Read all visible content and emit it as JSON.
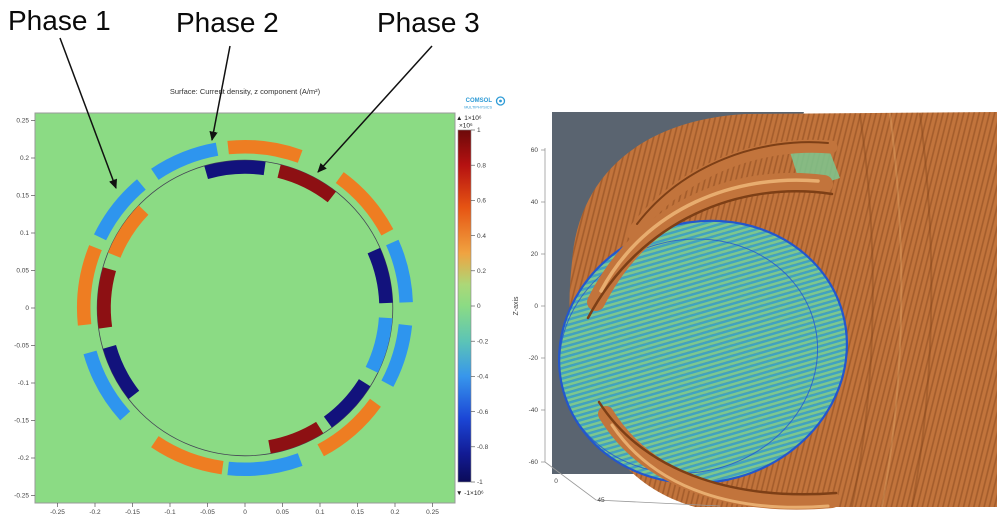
{
  "annotations": {
    "phase_labels": [
      "Phase 1",
      "Phase 2",
      "Phase 3"
    ]
  },
  "branding": {
    "logo_text": "COMSOL",
    "logo_sub": "MULTIPHYSICS"
  },
  "chart_data": [
    {
      "panel": "left",
      "type": "heatmap",
      "title": "Surface: Current density, z component (A/m²)",
      "x_ticks": [
        -0.25,
        -0.2,
        -0.15,
        -0.1,
        -0.05,
        0,
        0.05,
        0.1,
        0.15,
        0.2,
        0.25
      ],
      "y_ticks": [
        0.25,
        0.2,
        0.15,
        0.1,
        0.05,
        0,
        -0.05,
        -0.1,
        -0.15,
        -0.2,
        -0.25
      ],
      "xlim": [
        -0.28,
        0.28
      ],
      "ylim": [
        -0.26,
        0.26
      ],
      "background_value": 0,
      "background_color": "#8bdb84",
      "stator_circle_radius": 0.197,
      "rings": {
        "outer": [
          0.206,
          0.224
        ],
        "inner": [
          0.179,
          0.197
        ]
      },
      "palette": {
        "orange": "#ee7d22",
        "light_blue": "#2e95ee",
        "dark_blue": "#12127c",
        "dark_red": "#8d1013"
      },
      "segment_values_e6": {
        "orange": 0.5,
        "light_blue": -0.5,
        "dark_red": 1,
        "dark_blue": -1
      },
      "segments": [
        {
          "ring": "outer",
          "color": "light_blue",
          "from_deg": 2,
          "to_deg": 24
        },
        {
          "ring": "outer",
          "color": "orange",
          "from_deg": 28,
          "to_deg": 54
        },
        {
          "ring": "outer",
          "color": "orange",
          "from_deg": 70,
          "to_deg": 96
        },
        {
          "ring": "outer",
          "color": "light_blue",
          "from_deg": 100,
          "to_deg": 124
        },
        {
          "ring": "outer",
          "color": "light_blue",
          "from_deg": 130,
          "to_deg": 154
        },
        {
          "ring": "outer",
          "color": "orange",
          "from_deg": 158,
          "to_deg": 186
        },
        {
          "ring": "outer",
          "color": "light_blue",
          "from_deg": 196,
          "to_deg": 222
        },
        {
          "ring": "outer",
          "color": "orange",
          "from_deg": 236,
          "to_deg": 262
        },
        {
          "ring": "outer",
          "color": "light_blue",
          "from_deg": 264,
          "to_deg": 290
        },
        {
          "ring": "outer",
          "color": "orange",
          "from_deg": 298,
          "to_deg": 324
        },
        {
          "ring": "outer",
          "color": "light_blue",
          "from_deg": 332,
          "to_deg": 354
        },
        {
          "ring": "inner",
          "color": "dark_blue",
          "from_deg": 2,
          "to_deg": 24
        },
        {
          "ring": "inner",
          "color": "dark_red",
          "from_deg": 52,
          "to_deg": 76
        },
        {
          "ring": "inner",
          "color": "dark_blue",
          "from_deg": 82,
          "to_deg": 106
        },
        {
          "ring": "inner",
          "color": "orange",
          "from_deg": 136,
          "to_deg": 158
        },
        {
          "ring": "inner",
          "color": "dark_red",
          "from_deg": 164,
          "to_deg": 188
        },
        {
          "ring": "inner",
          "color": "dark_blue",
          "from_deg": 196,
          "to_deg": 218
        },
        {
          "ring": "inner",
          "color": "dark_red",
          "from_deg": 280,
          "to_deg": 302
        },
        {
          "ring": "inner",
          "color": "dark_blue",
          "from_deg": 306,
          "to_deg": 328
        },
        {
          "ring": "inner",
          "color": "light_blue",
          "from_deg": 334,
          "to_deg": 356
        }
      ],
      "colorbar": {
        "max_annotation": "▲ 1×10⁶",
        "multiplier": "×10⁶",
        "ticks": [
          1,
          0.8,
          0.6,
          0.4,
          0.2,
          0,
          -0.2,
          -0.4,
          -0.6,
          -0.8,
          -1
        ],
        "min_annotation": "▼ -1×10⁶",
        "gradient": [
          [
            0,
            "#6d0a0a"
          ],
          [
            0.1,
            "#b51111"
          ],
          [
            0.22,
            "#e65413"
          ],
          [
            0.35,
            "#f0a341"
          ],
          [
            0.44,
            "#abd878"
          ],
          [
            0.5,
            "#8bdb84"
          ],
          [
            0.6,
            "#5cc4b6"
          ],
          [
            0.7,
            "#3796ec"
          ],
          [
            0.82,
            "#1b46d6"
          ],
          [
            0.92,
            "#121b94"
          ],
          [
            1,
            "#0b0b58"
          ]
        ]
      }
    },
    {
      "panel": "right",
      "type": "3d-model",
      "z_axis_label": "Z-axis",
      "z_ticks": [
        60,
        40,
        20,
        0,
        -20,
        -40,
        -60
      ],
      "floor_ticks": [
        0,
        45
      ],
      "materials": {
        "copper_winding": "#c2743c",
        "copper_dark": "#7d3f16",
        "copper_light": "#e8ad6f",
        "core_green": "#7cc78f",
        "core_teal": "#3fa3c2",
        "core_outline_blue": "#2457cc",
        "back_panel": "#5a6470"
      }
    }
  ]
}
